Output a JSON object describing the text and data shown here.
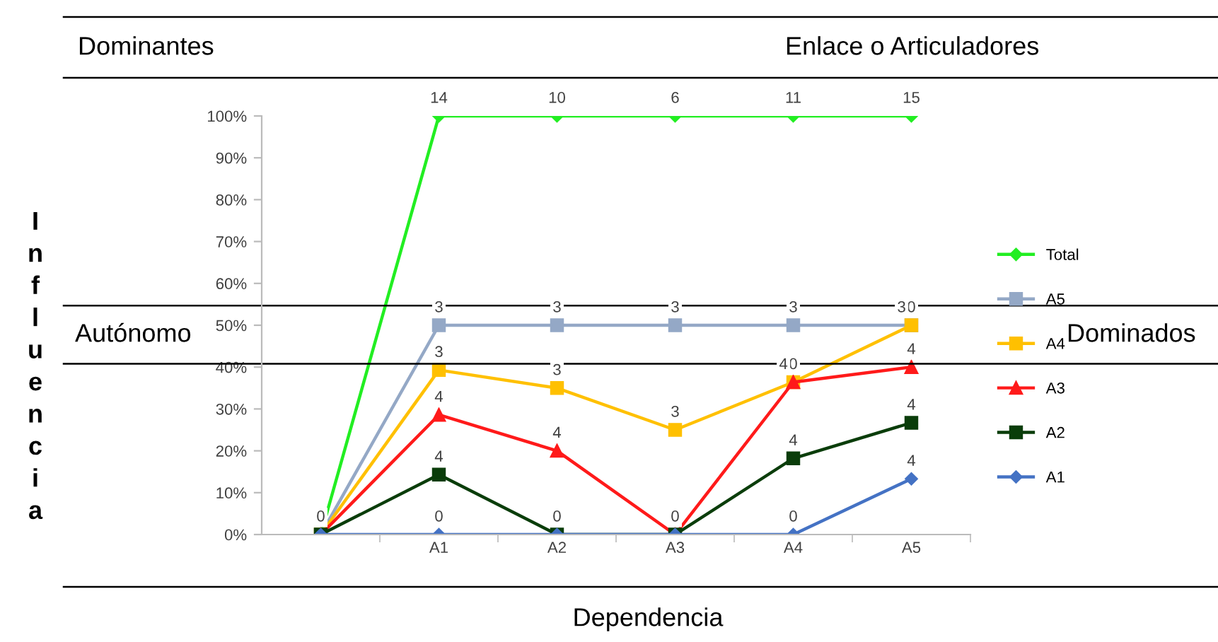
{
  "chart_data": {
    "type": "line",
    "categories": [
      null,
      "A1",
      "A2",
      "A3",
      "A4",
      "A5"
    ],
    "ylim": [
      0,
      100
    ],
    "yticks": [
      {
        "value": 0,
        "label": "0%"
      },
      {
        "value": 10,
        "label": "10%"
      },
      {
        "value": 20,
        "label": "20%"
      },
      {
        "value": 30,
        "label": "30%"
      },
      {
        "value": 40,
        "label": "40%"
      },
      {
        "value": 50,
        "label": "50%"
      },
      {
        "value": 60,
        "label": "60%"
      },
      {
        "value": 70,
        "label": "70%"
      },
      {
        "value": 80,
        "label": "80%"
      },
      {
        "value": 90,
        "label": "90%"
      },
      {
        "value": 100,
        "label": "100%"
      }
    ],
    "grid": false,
    "legend": "right",
    "series": [
      {
        "name": "Total",
        "color": "#22ee22",
        "marker": "diamond",
        "values": [
          0,
          100,
          100,
          100,
          100,
          100
        ]
      },
      {
        "name": "A5",
        "color": "#94a8c6",
        "marker": "square",
        "values": [
          0,
          50,
          50,
          50,
          50,
          50
        ]
      },
      {
        "name": "A4",
        "color": "#ffc000",
        "marker": "square",
        "values": [
          0,
          39.3,
          35,
          25,
          36.4,
          50
        ]
      },
      {
        "name": "A3",
        "color": "#ff1a1a",
        "marker": "triangle",
        "values": [
          0,
          28.6,
          20,
          0,
          36.4,
          40
        ]
      },
      {
        "name": "A2",
        "color": "#0a3d0a",
        "marker": "square",
        "values": [
          0,
          14.3,
          0,
          0,
          18.2,
          26.7
        ]
      },
      {
        "name": "A1",
        "color": "#4472c4",
        "marker": "diamond",
        "values": [
          0,
          0,
          0,
          0,
          0,
          13.3
        ]
      }
    ],
    "ref_lines": [
      {
        "axis": "y",
        "value": 54.7,
        "color": "#000000"
      },
      {
        "axis": "y",
        "value": 40.8,
        "color": "#000000"
      }
    ],
    "annotations": [
      "Dominantes",
      "Enlace o Articuladores",
      "Autónomo",
      "Dominados",
      "Influencia",
      "Dependencia",
      {
        "text": "0",
        "y": 0
      },
      {
        "text": "14",
        "x": "A1",
        "y": 100
      },
      {
        "text": "10",
        "x": "A2",
        "y": 100
      },
      {
        "text": "6",
        "x": "A3",
        "y": 100
      },
      {
        "text": "11",
        "x": "A4",
        "y": 100
      },
      {
        "text": "15",
        "x": "A5",
        "y": 100
      },
      {
        "text": "3",
        "x": "A1",
        "y": 50
      },
      {
        "text": "3",
        "x": "A2",
        "y": 50
      },
      {
        "text": "3",
        "x": "A3",
        "y": 50
      },
      {
        "text": "3",
        "x": "A4",
        "y": 50
      },
      {
        "text": "0",
        "x": "A5",
        "y": 50
      },
      {
        "text": "3",
        "x": "A1",
        "y": 39.3
      },
      {
        "text": "3",
        "x": "A2",
        "y": 35
      },
      {
        "text": "3",
        "x": "A3",
        "y": 25
      },
      {
        "text": "0",
        "x": "A4",
        "y": 36.4
      },
      {
        "text": "3",
        "x": "A5",
        "y": 50
      },
      {
        "text": "4",
        "x": "A1",
        "y": 28.6
      },
      {
        "text": "4",
        "x": "A2",
        "y": 20
      },
      {
        "text": "0",
        "x": "A3",
        "y": 0
      },
      {
        "text": "4",
        "x": "A4",
        "y": 36.4
      },
      {
        "text": "4",
        "x": "A5",
        "y": 40
      },
      {
        "text": "4",
        "x": "A1",
        "y": 14.3
      },
      {
        "text": "0",
        "x": "A2",
        "y": 0
      },
      {
        "text": "4",
        "x": "A4",
        "y": 18.2
      },
      {
        "text": "4",
        "x": "A5",
        "y": 26.7
      },
      {
        "text": "0",
        "x": "A1",
        "y": 0
      },
      {
        "text": "0",
        "x": "A4",
        "y": 0
      },
      {
        "text": "4",
        "x": "A5",
        "y": 13.3
      }
    ]
  }
}
